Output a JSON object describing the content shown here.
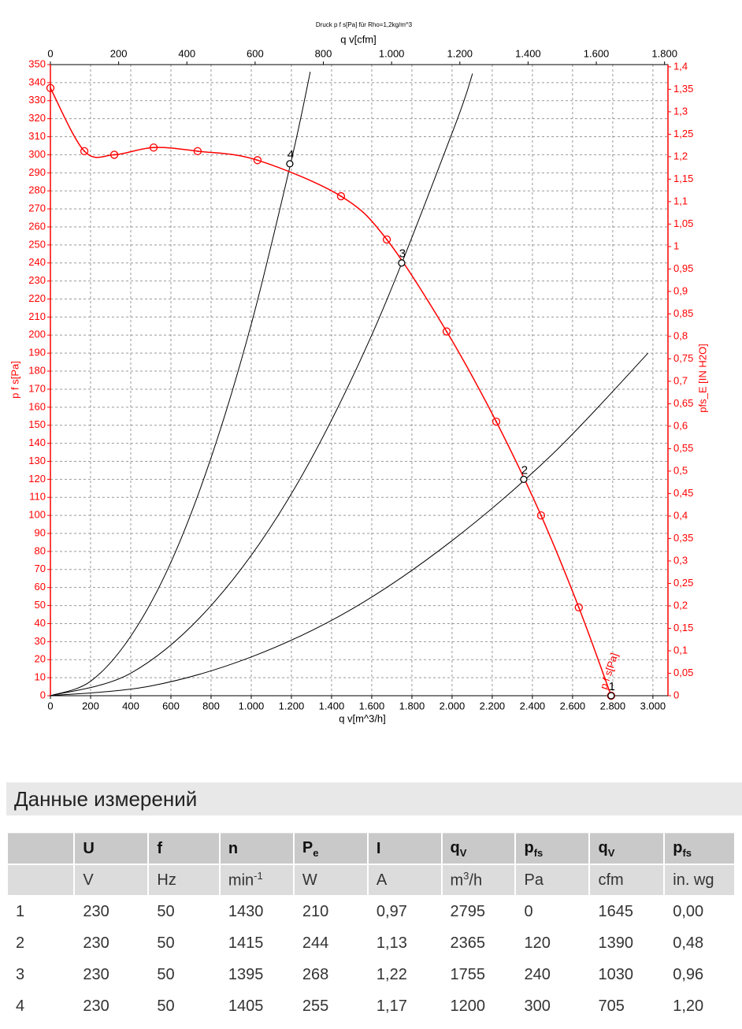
{
  "chart_data": {
    "type": "line",
    "title": "Druck p f s[Pa] für Rho=1,2kg/m^3",
    "x2_label": "q v[cfm]",
    "x_label": "q v[m^3/h]",
    "y_label": "p f s[Pa]",
    "y2_label": "pfs_E [IN H2O]",
    "curve_label": "p f s[Pa]",
    "xlim": [
      0,
      3075
    ],
    "x2lim": [
      0,
      1810
    ],
    "ylim": [
      0,
      350
    ],
    "y2lim": [
      0,
      1.405
    ],
    "grid": true,
    "xticks": [
      0,
      200,
      400,
      600,
      800,
      {
        "value": 1000,
        "label": "1.000"
      },
      {
        "value": 1200,
        "label": "1.200"
      },
      {
        "value": 1400,
        "label": "1.400"
      },
      {
        "value": 1600,
        "label": "1.600"
      },
      {
        "value": 1800,
        "label": "1.800"
      },
      {
        "value": 2000,
        "label": "2.000"
      },
      {
        "value": 2200,
        "label": "2.200"
      },
      {
        "value": 2400,
        "label": "2.400"
      },
      {
        "value": 2600,
        "label": "2.600"
      },
      {
        "value": 2800,
        "label": "2.800"
      },
      {
        "value": 3000,
        "label": "3.000"
      }
    ],
    "x2ticks": [
      0,
      200,
      400,
      600,
      800,
      {
        "value": 1000,
        "label": "1.000"
      },
      {
        "value": 1200,
        "label": "1.200"
      },
      {
        "value": 1400,
        "label": "1.400"
      },
      {
        "value": 1600,
        "label": "1.600"
      },
      {
        "value": 1800,
        "label": "1.800"
      }
    ],
    "yticks": [
      0,
      10,
      20,
      30,
      40,
      50,
      60,
      70,
      80,
      90,
      100,
      110,
      120,
      130,
      140,
      150,
      160,
      170,
      180,
      190,
      200,
      210,
      220,
      230,
      240,
      250,
      260,
      270,
      280,
      290,
      300,
      310,
      320,
      330,
      340,
      350
    ],
    "y2ticks": [
      0,
      {
        "value": 0.05,
        "label": "0,05"
      },
      {
        "value": 0.1,
        "label": "0,1"
      },
      {
        "value": 0.15,
        "label": "0,15"
      },
      {
        "value": 0.2,
        "label": "0,2"
      },
      {
        "value": 0.25,
        "label": "0,25"
      },
      {
        "value": 0.3,
        "label": "0,3"
      },
      {
        "value": 0.35,
        "label": "0,35"
      },
      {
        "value": 0.4,
        "label": "0,4"
      },
      {
        "value": 0.45,
        "label": "0,45"
      },
      {
        "value": 0.5,
        "label": "0,5"
      },
      {
        "value": 0.55,
        "label": "0,55"
      },
      {
        "value": 0.6,
        "label": "0,6"
      },
      {
        "value": 0.65,
        "label": "0,65"
      },
      {
        "value": 0.7,
        "label": "0,7"
      },
      {
        "value": 0.75,
        "label": "0,75"
      },
      {
        "value": 0.8,
        "label": "0,8"
      },
      {
        "value": 0.85,
        "label": "0,85"
      },
      {
        "value": 0.9,
        "label": "0,9"
      },
      {
        "value": 0.95,
        "label": "0,95"
      },
      1,
      {
        "value": 1.05,
        "label": "1,05"
      },
      {
        "value": 1.1,
        "label": "1,1"
      },
      {
        "value": 1.15,
        "label": "1,15"
      },
      {
        "value": 1.2,
        "label": "1,2"
      },
      {
        "value": 1.25,
        "label": "1,25"
      },
      {
        "value": 1.3,
        "label": "1,3"
      },
      {
        "value": 1.35,
        "label": "1,35"
      },
      {
        "value": 1.4,
        "label": "1,4"
      }
    ],
    "fan_curve": {
      "color": "#ff0000",
      "x": [
        0,
        169,
        318,
        514,
        733,
        1031,
        1447,
        1675,
        1973,
        2220,
        2443,
        2631,
        2792
      ],
      "values": [
        337,
        302,
        300,
        304,
        302,
        297,
        277,
        253,
        202,
        152,
        100,
        49,
        0
      ]
    },
    "system_curves": [
      {
        "color": "#000000",
        "x": [
          0,
          200,
          400,
          600,
          800,
          1000,
          1200,
          1294
        ],
        "values": [
          0,
          8,
          33,
          74,
          132,
          206,
          297,
          346
        ]
      },
      {
        "color": "#000000",
        "x": [
          0,
          400,
          800,
          1200,
          1600,
          2000,
          2102
        ],
        "values": [
          0,
          12.5,
          50,
          112,
          200,
          312,
          345
        ]
      },
      {
        "color": "#000000",
        "x": [
          0,
          500,
          1000,
          1500,
          2000,
          2500,
          2976
        ],
        "values": [
          0,
          5.4,
          21.5,
          48,
          86,
          134,
          190
        ]
      }
    ],
    "operating_points": [
      {
        "label": "1",
        "x": 2792,
        "y": 0
      },
      {
        "label": "2",
        "x": 2357,
        "y": 120
      },
      {
        "label": "3",
        "x": 1749,
        "y": 240
      },
      {
        "label": "4",
        "x": 1192,
        "y": 295
      }
    ]
  },
  "section_title": "Данные измерений",
  "table": {
    "header": [
      {
        "symbol": "U",
        "unit": "V"
      },
      {
        "symbol": "f",
        "unit": "Hz"
      },
      {
        "symbol": "n",
        "unit": "min",
        "unit_sup": "-1"
      },
      {
        "symbol": "P",
        "symbol_sub": "e",
        "unit": "W"
      },
      {
        "symbol": "I",
        "unit": "A"
      },
      {
        "symbol": "q",
        "symbol_sub": "V",
        "unit": "m",
        "unit_sup": "3",
        "unit_rest": "/h"
      },
      {
        "symbol": "p",
        "symbol_sub": "fs",
        "unit": "Pa"
      },
      {
        "symbol": "q",
        "symbol_sub": "V",
        "unit": "cfm"
      },
      {
        "symbol": "p",
        "symbol_sub": "fs",
        "unit": "in. wg"
      }
    ],
    "rows": [
      [
        "1",
        "230",
        "50",
        "1430",
        "210",
        "0,97",
        "2795",
        "0",
        "1645",
        "0,00"
      ],
      [
        "2",
        "230",
        "50",
        "1415",
        "244",
        "1,13",
        "2365",
        "120",
        "1390",
        "0,48"
      ],
      [
        "3",
        "230",
        "50",
        "1395",
        "268",
        "1,22",
        "1755",
        "240",
        "1030",
        "0,96"
      ],
      [
        "4",
        "230",
        "50",
        "1405",
        "255",
        "1,17",
        "1200",
        "300",
        "705",
        "1,20"
      ]
    ]
  }
}
